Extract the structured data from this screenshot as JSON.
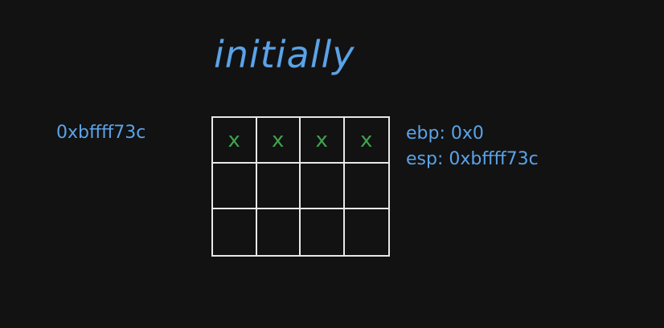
{
  "title": "initially",
  "stack_address": "0xbffff73c",
  "registers": [
    {
      "label": "ebp: 0x0"
    },
    {
      "label": "esp: 0xbffff73c"
    }
  ],
  "stack": {
    "rows": [
      [
        "x",
        "x",
        "x",
        "x"
      ],
      [
        "",
        "",
        "",
        ""
      ],
      [
        "",
        "",
        "",
        ""
      ]
    ]
  },
  "colors": {
    "background": "#121212",
    "text": "#5ba3e8",
    "grid": "#e8e8e8",
    "mark": "#3fa34d"
  }
}
